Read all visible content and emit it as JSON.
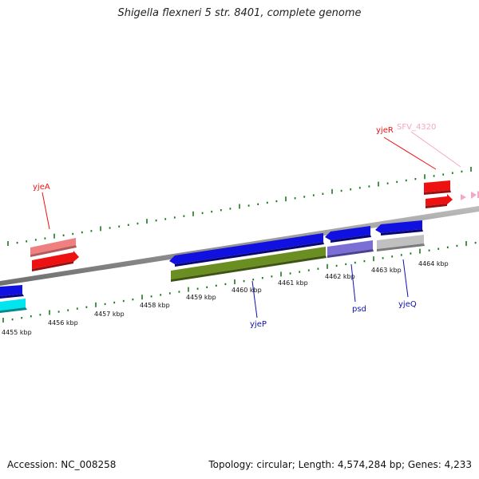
{
  "header": {
    "title": "Shigella flexneri 5 str. 8401, complete genome"
  },
  "footer": {
    "accession": "Accession: NC_008258",
    "summary": "Topology: circular; Length: 4,574,284 bp; Genes: 4,233"
  },
  "scale": {
    "labels": [
      "4455 kbp",
      "4456 kbp",
      "4457 kbp",
      "4458 kbp",
      "4459 kbp",
      "4460 kbp",
      "4461 kbp",
      "4462 kbp",
      "4463 kbp",
      "4464 kbp"
    ]
  },
  "genes": {
    "yjeA": "yjeA",
    "yjeR": "yjeR",
    "SFV_4320": "SFV_4320",
    "yjeP": "yjeP",
    "psd": "psd",
    "yjeQ": "yjeQ"
  },
  "colors": {
    "backbone": "#8c8c8c",
    "ticks": "#1a7a1a",
    "blue": "#1010e0",
    "red": "#ee1111",
    "pink": "#f08080",
    "olive": "#6b8e23",
    "purple": "#7b6fd6",
    "gray": "#c0c0c0",
    "cyan": "#00e5ee",
    "light_pink": "#f5a6c6"
  }
}
